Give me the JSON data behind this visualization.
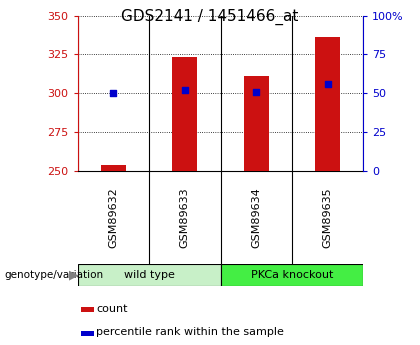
{
  "title": "GDS2141 / 1451466_at",
  "categories": [
    "GSM89632",
    "GSM89633",
    "GSM89634",
    "GSM89635"
  ],
  "bar_values": [
    254,
    323,
    311,
    336
  ],
  "percentile_values": [
    50,
    52,
    51,
    56
  ],
  "bar_color": "#cc1111",
  "dot_color": "#0000cc",
  "ylim_left": [
    250,
    350
  ],
  "ylim_right": [
    0,
    100
  ],
  "yticks_left": [
    250,
    275,
    300,
    325,
    350
  ],
  "yticks_right": [
    0,
    25,
    50,
    75,
    100
  ],
  "bg_color": "#ffffff",
  "plot_bg": "#ffffff",
  "label_bg": "#c8c8c8",
  "group1_label": "wild type",
  "group2_label": "PKCa knockout",
  "group1_color": "#c8f0c8",
  "group2_color": "#44ee44",
  "group_label_text": "genotype/variation",
  "legend_count": "count",
  "legend_pct": "percentile rank within the sample",
  "left_tick_color": "#cc1111",
  "right_tick_color": "#0000cc",
  "title_fontsize": 11,
  "tick_fontsize": 8,
  "label_fontsize": 8,
  "bar_width": 0.35
}
